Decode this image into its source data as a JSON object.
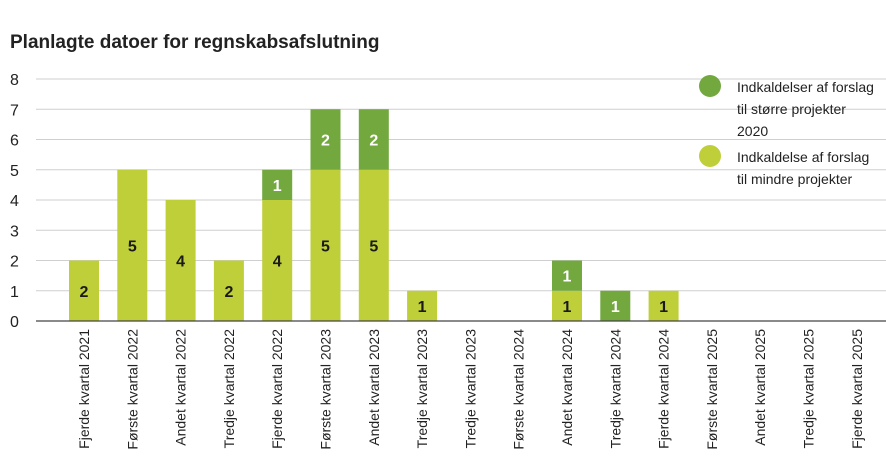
{
  "chart_data": {
    "type": "bar",
    "stacked": true,
    "title": "Planlagte datoer for regnskabsafslutning",
    "categories": [
      "Fjerde kvartal 2021",
      "Første kvartal 2022",
      "Andet kvartal 2022",
      "Tredje kvartal 2022",
      "Fjerde kvartal 2022",
      "Første kvartal 2023",
      "Andet kvartal 2023",
      "Tredje kvartal 2023",
      "Tredje kvartal 2023",
      "Første kvartal 2024",
      "Andet kvartal 2024",
      "Tredje kvartal 2024",
      "Fjerde kvartal 2024",
      "Første kvartal 2025",
      "Andet kvartal 2025",
      "Tredje kvartal 2025",
      "Fjerde kvartal 2025"
    ],
    "series": [
      {
        "name": "Indkaldelse af forslag til mindre projekter",
        "color": "#bfcf3a",
        "values": [
          2,
          5,
          4,
          2,
          4,
          5,
          5,
          1,
          0,
          0,
          1,
          0,
          1,
          0,
          0,
          0,
          0
        ]
      },
      {
        "name": "Indkaldelser af forslag til større projekter 2020",
        "color": "#72a83e",
        "values": [
          0,
          0,
          0,
          0,
          1,
          2,
          2,
          0,
          0,
          0,
          1,
          1,
          0,
          0,
          0,
          0,
          0
        ]
      }
    ],
    "ylim": [
      0,
      8
    ],
    "yticks": [
      0,
      1,
      2,
      3,
      4,
      5,
      6,
      7,
      8
    ],
    "grid": true,
    "xlabel": "",
    "ylabel": "",
    "legend_position": "top-right"
  }
}
